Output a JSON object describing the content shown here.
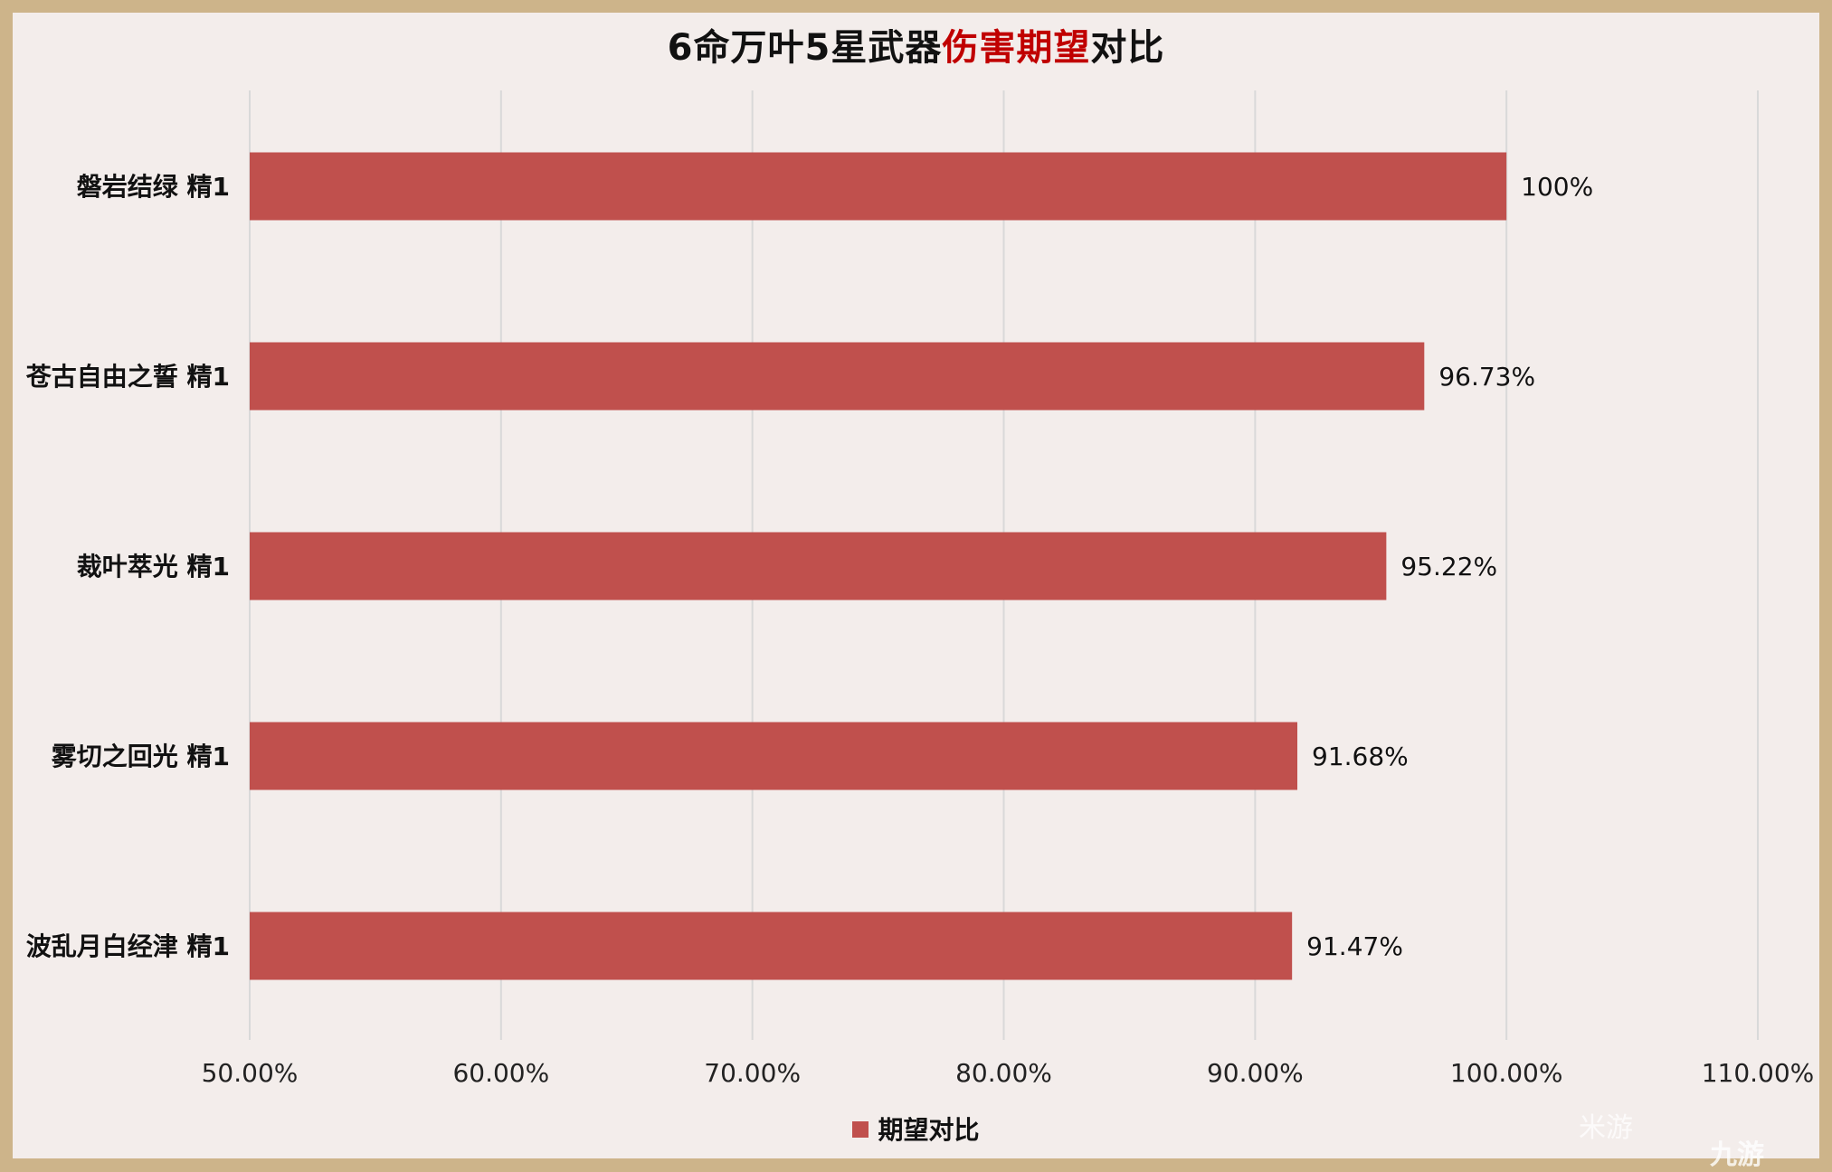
{
  "title_parts": {
    "before": "6命万叶5星武器",
    "highlight": "伤害期望",
    "after": "对比"
  },
  "colors": {
    "bar": "#c0504d",
    "highlight": "#c00000",
    "border": "#cdb48a",
    "background": "#f3edeb",
    "grid": "#d9d9d9"
  },
  "watermark": {
    "text": "米游",
    "logo_text": "九游"
  },
  "chart_data": {
    "type": "bar",
    "orientation": "horizontal",
    "title": "6命万叶5星武器伤害期望对比",
    "categories": [
      "磐岩结绿 精1",
      "苍古自由之誓 精1",
      "裁叶萃光 精1",
      "雾切之回光 精1",
      "波乱月白经津 精1"
    ],
    "series": [
      {
        "name": "期望对比",
        "values": [
          100,
          96.73,
          95.22,
          91.68,
          91.47
        ],
        "labels": [
          "100%",
          "96.73%",
          "95.22%",
          "91.68%",
          "91.47%"
        ]
      }
    ],
    "xlim": [
      50,
      110
    ],
    "xticks": [
      50,
      60,
      70,
      80,
      90,
      100,
      110
    ],
    "xtick_labels": [
      "50.00%",
      "60.00%",
      "70.00%",
      "80.00%",
      "90.00%",
      "100.00%",
      "110.00%"
    ],
    "grid": "vertical",
    "legend": "bottom"
  }
}
